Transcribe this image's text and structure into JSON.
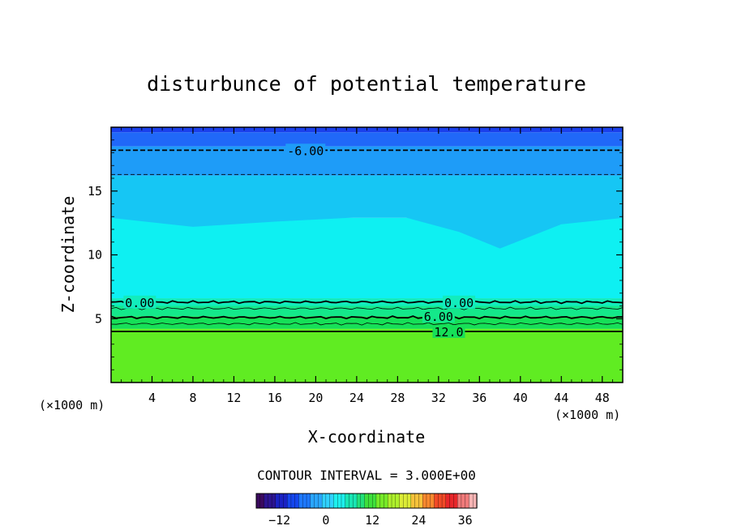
{
  "chart_data": {
    "type": "heatmap",
    "title": "disturbunce of potential temperature",
    "xlabel": "X-coordinate",
    "ylabel": "Z-coordinate",
    "x_unit_left": "(×1000 m)",
    "x_unit_right": "(×1000 m)",
    "xlim": [
      0,
      50
    ],
    "ylim": [
      0,
      20
    ],
    "x_ticks": [
      4,
      8,
      12,
      16,
      20,
      24,
      28,
      32,
      36,
      40,
      44,
      48
    ],
    "y_ticks": [
      5,
      10,
      15
    ],
    "contour_interval_text": "CONTOUR INTERVAL = 3.000E+00",
    "contour_labels": [
      {
        "text": "-6.00",
        "x": 19,
        "z": 18.2
      },
      {
        "text": "0.00",
        "x": 2.8,
        "z": 6.3
      },
      {
        "text": "0.00",
        "x": 34,
        "z": 6.3
      },
      {
        "text": "6.00",
        "x": 32,
        "z": 5.2
      },
      {
        "text": "12.0",
        "x": 33,
        "z": 4.0
      }
    ],
    "colorbar": {
      "min": -18,
      "max": 39,
      "ticks": [
        -12,
        0,
        12,
        24,
        36
      ],
      "colors": [
        "#3a0a5e",
        "#2c1490",
        "#1a22c4",
        "#1446ee",
        "#1e78ff",
        "#2aa6ff",
        "#30d2ff",
        "#1ef0ee",
        "#18e6b4",
        "#22e07a",
        "#3ee03c",
        "#76ea28",
        "#aef02c",
        "#dcec36",
        "#f6c23a",
        "#f8882e",
        "#f24a26",
        "#e8262a",
        "#f07a7a",
        "#f6b4b4"
      ]
    },
    "bands": [
      {
        "z_top": 20.0,
        "z_bottom": 19.6,
        "color": "#1a40ec"
      },
      {
        "z_top": 19.6,
        "z_bottom": 18.5,
        "color": "#2068f8"
      },
      {
        "z_top": 18.5,
        "z_bottom": 16.2,
        "color": "#1e9cf8"
      },
      {
        "z_top": 16.2,
        "z_bottom": 12.9,
        "color": "#16c6f4"
      },
      {
        "z_top": 12.9,
        "z_bottom": 6.6,
        "color": "#0ef0f2"
      },
      {
        "z_top": 6.6,
        "z_bottom": 6.0,
        "color": "#12ecbc"
      },
      {
        "z_top": 6.0,
        "z_bottom": 5.2,
        "color": "#14e88a"
      },
      {
        "z_top": 5.2,
        "z_bottom": 4.2,
        "color": "#16e058"
      },
      {
        "z_top": 4.2,
        "z_bottom": 0.0,
        "color": "#60ec22"
      }
    ],
    "contours": [
      {
        "value": -6,
        "z": 18.2,
        "style": "dashed",
        "weight": "thick"
      },
      {
        "value": -3,
        "z": 16.3,
        "style": "dashed",
        "weight": "thin"
      },
      {
        "value": 0,
        "z": 6.3,
        "style": "solid",
        "weight": "thick"
      },
      {
        "value": 3,
        "z": 5.8,
        "style": "solid",
        "weight": "thin"
      },
      {
        "value": 6,
        "z": 5.1,
        "style": "solid",
        "weight": "thick"
      },
      {
        "value": 9,
        "z": 4.6,
        "style": "solid",
        "weight": "thin"
      },
      {
        "value": 12,
        "z": 4.0,
        "style": "solid",
        "weight": "thick"
      }
    ],
    "cold_dome": [
      {
        "x": 0,
        "z": 12.9
      },
      {
        "x": 8,
        "z": 12.2
      },
      {
        "x": 16,
        "z": 12.6
      },
      {
        "x": 28,
        "z": 13.1
      },
      {
        "x": 34,
        "z": 11.8
      },
      {
        "x": 38,
        "z": 10.5
      },
      {
        "x": 44,
        "z": 12.4
      },
      {
        "x": 50,
        "z": 12.9
      }
    ]
  }
}
